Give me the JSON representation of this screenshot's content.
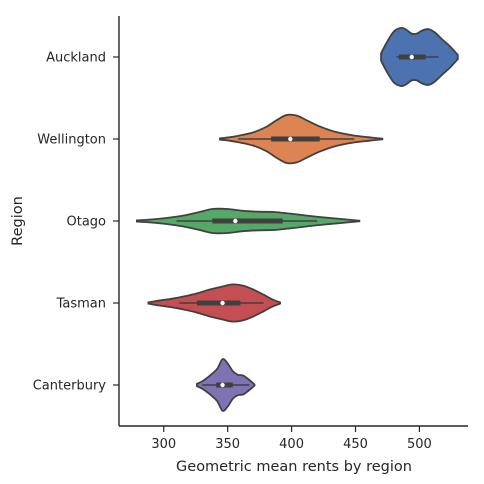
{
  "chart_data": {
    "type": "violin",
    "orientation": "horizontal",
    "xlabel": "Geometric mean rents by region",
    "ylabel": "Region",
    "xlim": [
      265,
      538
    ],
    "xticks": [
      300,
      350,
      400,
      450,
      500
    ],
    "categories": [
      "Auckland",
      "Wellington",
      "Otago",
      "Tasman",
      "Canterbury"
    ],
    "series": [
      {
        "category": "Auckland",
        "color": "#4c72b0",
        "extent": [
          470,
          530
        ],
        "whisker": [
          482,
          515
        ],
        "q1": 484,
        "median": 494,
        "q3": 505,
        "density": [
          [
            470,
            0.12
          ],
          [
            474,
            0.45
          ],
          [
            480,
            0.85
          ],
          [
            486,
            0.97
          ],
          [
            490,
            0.9
          ],
          [
            494,
            0.78
          ],
          [
            498,
            0.78
          ],
          [
            502,
            0.88
          ],
          [
            507,
            0.93
          ],
          [
            512,
            0.82
          ],
          [
            518,
            0.58
          ],
          [
            524,
            0.35
          ],
          [
            530,
            0.07
          ]
        ]
      },
      {
        "category": "Wellington",
        "color": "#dd8452",
        "extent": [
          344,
          471
        ],
        "whisker": [
          358,
          449
        ],
        "q1": 384,
        "median": 399,
        "q3": 422,
        "density": [
          [
            344,
            0.02
          ],
          [
            352,
            0.06
          ],
          [
            360,
            0.12
          ],
          [
            370,
            0.22
          ],
          [
            380,
            0.4
          ],
          [
            388,
            0.62
          ],
          [
            396,
            0.8
          ],
          [
            404,
            0.78
          ],
          [
            412,
            0.62
          ],
          [
            422,
            0.42
          ],
          [
            434,
            0.24
          ],
          [
            448,
            0.12
          ],
          [
            460,
            0.06
          ],
          [
            471,
            0.01
          ]
        ]
      },
      {
        "category": "Otago",
        "color": "#55a868",
        "extent": [
          279,
          453
        ],
        "whisker": [
          310,
          420
        ],
        "q1": 338,
        "median": 356,
        "q3": 393,
        "density": [
          [
            279,
            0.02
          ],
          [
            290,
            0.05
          ],
          [
            302,
            0.1
          ],
          [
            315,
            0.18
          ],
          [
            328,
            0.3
          ],
          [
            338,
            0.4
          ],
          [
            350,
            0.4
          ],
          [
            362,
            0.34
          ],
          [
            374,
            0.31
          ],
          [
            386,
            0.3
          ],
          [
            398,
            0.25
          ],
          [
            412,
            0.18
          ],
          [
            425,
            0.12
          ],
          [
            438,
            0.07
          ],
          [
            453,
            0.01
          ]
        ]
      },
      {
        "category": "Tasman",
        "color": "#c44e52",
        "extent": [
          288,
          391
        ],
        "whisker": [
          312,
          378
        ],
        "q1": 326,
        "median": 346,
        "q3": 360,
        "density": [
          [
            288,
            0.02
          ],
          [
            296,
            0.08
          ],
          [
            306,
            0.14
          ],
          [
            316,
            0.22
          ],
          [
            326,
            0.32
          ],
          [
            336,
            0.45
          ],
          [
            346,
            0.55
          ],
          [
            354,
            0.62
          ],
          [
            362,
            0.58
          ],
          [
            370,
            0.45
          ],
          [
            378,
            0.28
          ],
          [
            385,
            0.12
          ],
          [
            391,
            0.02
          ]
        ]
      },
      {
        "category": "Canterbury",
        "color": "#8172b3",
        "extent": [
          326,
          371
        ],
        "whisker": [
          330,
          367
        ],
        "q1": 341,
        "median": 346,
        "q3": 354,
        "density": [
          [
            326,
            0.04
          ],
          [
            330,
            0.12
          ],
          [
            334,
            0.24
          ],
          [
            338,
            0.38
          ],
          [
            342,
            0.55
          ],
          [
            346,
            0.86
          ],
          [
            350,
            0.72
          ],
          [
            354,
            0.46
          ],
          [
            358,
            0.34
          ],
          [
            362,
            0.32
          ],
          [
            366,
            0.2
          ],
          [
            371,
            0.02
          ]
        ]
      }
    ]
  }
}
